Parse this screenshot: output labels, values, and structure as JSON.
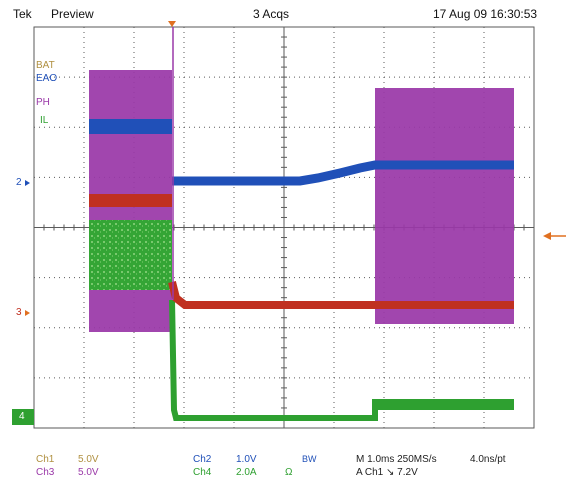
{
  "header": {
    "brand": "Tek",
    "mode": "Preview",
    "acquisitions": "3 Acqs",
    "timestamp": "17 Aug 09 16:30:53"
  },
  "trace_labels": {
    "bat": "BAT",
    "eao": "EAO",
    "ph": "PH",
    "il": "IL"
  },
  "channel_markers": {
    "ch2": "2",
    "ch3": "3",
    "ch4": "4"
  },
  "readout": {
    "ch1_name": "Ch1",
    "ch1_scale": "5.0V",
    "ch3_name": "Ch3",
    "ch3_scale": "5.0V",
    "ch2_name": "Ch2",
    "ch2_scale": "1.0V",
    "ch4_name": "Ch4",
    "ch4_scale": "2.0A",
    "ch4_unit": "Ω",
    "bw": "BW",
    "timebase": "M 1.0ms 250MS/s",
    "resolution": "4.0ns/pt",
    "trigger": "A  Ch1  ↘  7.2V"
  },
  "colors": {
    "ch1": "#c03020",
    "ch2": "#2050b8",
    "ch3": "#9a38a8",
    "ch4": "#2ea030",
    "grid": "#5a5a5a",
    "label_bat": "#b09040",
    "label_ph": "#9a38a8",
    "label_il": "#2ea030",
    "trigger": "#e07020"
  }
}
